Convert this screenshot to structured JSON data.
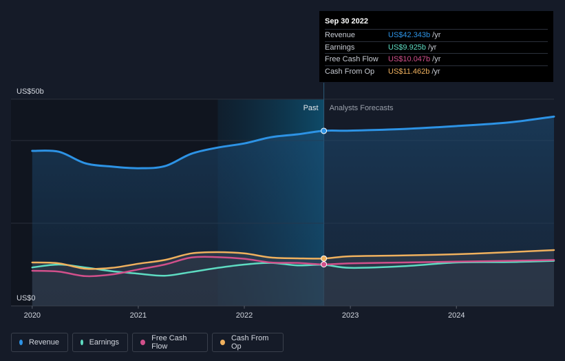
{
  "chart_data": {
    "type": "line",
    "y_axis": {
      "top_label": "US$50b",
      "bottom_label": "US$0",
      "ylim": [
        0,
        50
      ]
    },
    "x_axis": {
      "ticks": [
        "2020",
        "2021",
        "2022",
        "2023",
        "2024"
      ],
      "tick_values": [
        2020.0,
        2021.0,
        2022.0,
        2023.0,
        2024.0
      ],
      "xlim": [
        2019.8,
        2024.92
      ]
    },
    "past_cutoff": 2022.75,
    "highlight_start": 2021.75,
    "past_label": "Past",
    "forecast_label": "Analysts Forecasts",
    "series": [
      {
        "name": "Revenue",
        "key": "revenue",
        "color": "#2d93e5",
        "past": [
          [
            2020.0,
            37.5
          ],
          [
            2020.25,
            37.3
          ],
          [
            2020.5,
            34.5
          ],
          [
            2020.75,
            33.7
          ],
          [
            2021.0,
            33.3
          ],
          [
            2021.25,
            33.8
          ],
          [
            2021.5,
            36.8
          ],
          [
            2021.75,
            38.3
          ],
          [
            2022.0,
            39.3
          ],
          [
            2022.25,
            40.8
          ],
          [
            2022.5,
            41.5
          ],
          [
            2022.75,
            42.343
          ]
        ],
        "forecast": [
          [
            2022.75,
            42.343
          ],
          [
            2023.0,
            42.4
          ],
          [
            2023.5,
            42.8
          ],
          [
            2024.0,
            43.5
          ],
          [
            2024.5,
            44.4
          ],
          [
            2024.92,
            45.8
          ]
        ]
      },
      {
        "name": "Earnings",
        "key": "earnings",
        "color": "#5edcc2",
        "past": [
          [
            2020.0,
            9.3
          ],
          [
            2020.25,
            10.0
          ],
          [
            2020.5,
            9.3
          ],
          [
            2020.75,
            8.4
          ],
          [
            2021.0,
            7.8
          ],
          [
            2021.25,
            7.3
          ],
          [
            2021.5,
            8.2
          ],
          [
            2021.75,
            9.2
          ],
          [
            2022.0,
            10.0
          ],
          [
            2022.25,
            10.4
          ],
          [
            2022.5,
            9.8
          ],
          [
            2022.75,
            9.925
          ]
        ],
        "forecast": [
          [
            2022.75,
            9.925
          ],
          [
            2023.0,
            9.2
          ],
          [
            2023.5,
            9.6
          ],
          [
            2024.0,
            10.5
          ],
          [
            2024.5,
            10.6
          ],
          [
            2024.92,
            10.9
          ]
        ]
      },
      {
        "name": "Free Cash Flow",
        "key": "fcf",
        "color": "#d1508b",
        "past": [
          [
            2020.0,
            8.5
          ],
          [
            2020.25,
            8.3
          ],
          [
            2020.5,
            7.2
          ],
          [
            2020.75,
            7.6
          ],
          [
            2021.0,
            8.8
          ],
          [
            2021.25,
            10.0
          ],
          [
            2021.5,
            11.7
          ],
          [
            2021.75,
            11.8
          ],
          [
            2022.0,
            11.4
          ],
          [
            2022.25,
            10.5
          ],
          [
            2022.5,
            10.4
          ],
          [
            2022.75,
            10.047
          ]
        ],
        "forecast": [
          [
            2022.75,
            10.047
          ],
          [
            2023.0,
            10.3
          ],
          [
            2023.5,
            10.5
          ],
          [
            2024.0,
            10.7
          ],
          [
            2024.5,
            10.9
          ],
          [
            2024.92,
            11.1
          ]
        ]
      },
      {
        "name": "Cash From Op",
        "key": "cfo",
        "color": "#f0b15e",
        "past": [
          [
            2020.0,
            10.5
          ],
          [
            2020.25,
            10.3
          ],
          [
            2020.5,
            9.0
          ],
          [
            2020.75,
            9.2
          ],
          [
            2021.0,
            10.2
          ],
          [
            2021.25,
            11.1
          ],
          [
            2021.5,
            12.7
          ],
          [
            2021.75,
            13.0
          ],
          [
            2022.0,
            12.7
          ],
          [
            2022.25,
            11.7
          ],
          [
            2022.5,
            11.5
          ],
          [
            2022.75,
            11.462
          ]
        ],
        "forecast": [
          [
            2022.75,
            11.462
          ],
          [
            2023.0,
            12.0
          ],
          [
            2023.5,
            12.2
          ],
          [
            2024.0,
            12.5
          ],
          [
            2024.5,
            13.0
          ],
          [
            2024.92,
            13.5
          ]
        ]
      }
    ]
  },
  "tooltip": {
    "date": "Sep 30 2022",
    "rows": [
      {
        "label": "Revenue",
        "value": "US$42.343b",
        "unit": "/yr",
        "color": "#2d93e5"
      },
      {
        "label": "Earnings",
        "value": "US$9.925b",
        "unit": "/yr",
        "color": "#5edcc2"
      },
      {
        "label": "Free Cash Flow",
        "value": "US$10.047b",
        "unit": "/yr",
        "color": "#d1508b"
      },
      {
        "label": "Cash From Op",
        "value": "US$11.462b",
        "unit": "/yr",
        "color": "#f0b15e"
      }
    ]
  },
  "legend": [
    {
      "label": "Revenue",
      "color": "#2d93e5"
    },
    {
      "label": "Earnings",
      "color": "#5edcc2"
    },
    {
      "label": "Free Cash Flow",
      "color": "#d1508b"
    },
    {
      "label": "Cash From Op",
      "color": "#f0b15e"
    }
  ]
}
